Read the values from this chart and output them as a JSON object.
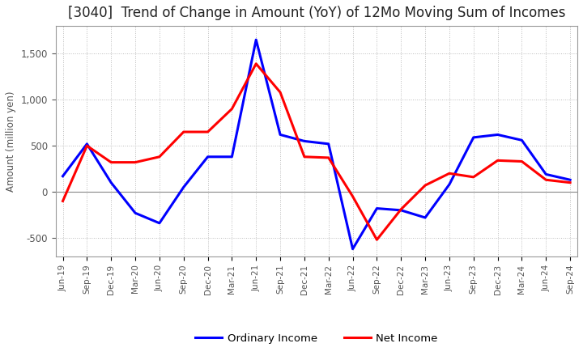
{
  "title": "[3040]  Trend of Change in Amount (YoY) of 12Mo Moving Sum of Incomes",
  "ylabel": "Amount (million yen)",
  "ylim": [
    -700,
    1800
  ],
  "yticks": [
    -500,
    0,
    500,
    1000,
    1500
  ],
  "x_labels": [
    "Jun-19",
    "Sep-19",
    "Dec-19",
    "Mar-20",
    "Jun-20",
    "Sep-20",
    "Dec-20",
    "Mar-21",
    "Jun-21",
    "Sep-21",
    "Dec-21",
    "Mar-22",
    "Jun-22",
    "Sep-22",
    "Dec-22",
    "Mar-23",
    "Jun-23",
    "Sep-23",
    "Dec-23",
    "Mar-24",
    "Jun-24",
    "Sep-24"
  ],
  "ordinary_income": [
    170,
    520,
    100,
    -230,
    -340,
    50,
    380,
    380,
    1650,
    620,
    550,
    520,
    -620,
    -180,
    -200,
    -280,
    80,
    590,
    620,
    560,
    190,
    130
  ],
  "net_income": [
    -100,
    500,
    320,
    320,
    380,
    650,
    650,
    900,
    1390,
    1080,
    380,
    370,
    -50,
    -520,
    -190,
    70,
    200,
    160,
    340,
    330,
    130,
    100
  ],
  "ordinary_income_color": "#0000ff",
  "net_income_color": "#ff0000",
  "grid_color": "#bbbbbb",
  "background_color": "#ffffff",
  "title_fontsize": 12,
  "tick_color": "#555555",
  "legend_labels": [
    "Ordinary Income",
    "Net Income"
  ]
}
